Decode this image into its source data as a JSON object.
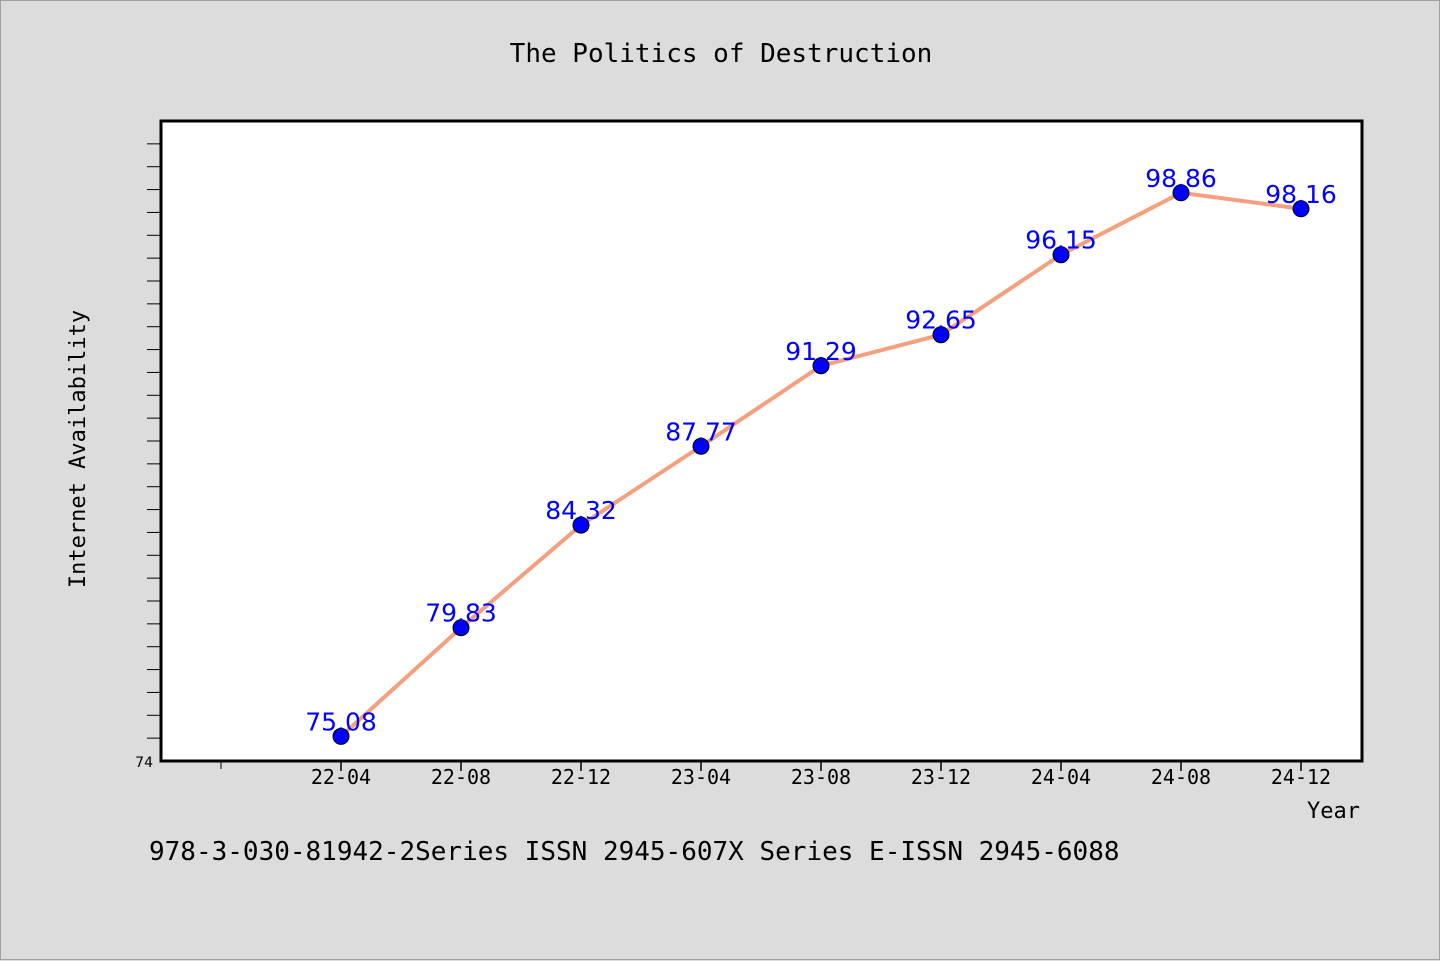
{
  "footer": {
    "text": "978-3-030-81942-2Series ISSN 2945-607X Series E-ISSN 2945-6088"
  },
  "colors": {
    "background": "#dcdcdc",
    "plot_background": "#ffffff",
    "line": "#f4a07e",
    "marker": "#0000ff",
    "data_label": "#0000ff"
  },
  "chart_data": {
    "type": "line",
    "title": "The Politics of Destruction",
    "xlabel": "Year",
    "ylabel": "Internet Availability",
    "categories": [
      "22-04",
      "22-08",
      "22-12",
      "23-04",
      "23-08",
      "23-12",
      "24-04",
      "24-08",
      "24-12"
    ],
    "series": [
      {
        "values": [
          75.08,
          79.83,
          84.32,
          87.77,
          91.29,
          92.65,
          96.15,
          98.86,
          98.16
        ],
        "labels": [
          "75.08",
          "79.83",
          "84.32",
          "87.77",
          "91.29",
          "92.65",
          "96.15",
          "98.86",
          "98.16"
        ]
      }
    ],
    "ylim": [
      74,
      102
    ],
    "yticks_labeled": [
      "74"
    ],
    "grid": false,
    "legend": "none"
  }
}
